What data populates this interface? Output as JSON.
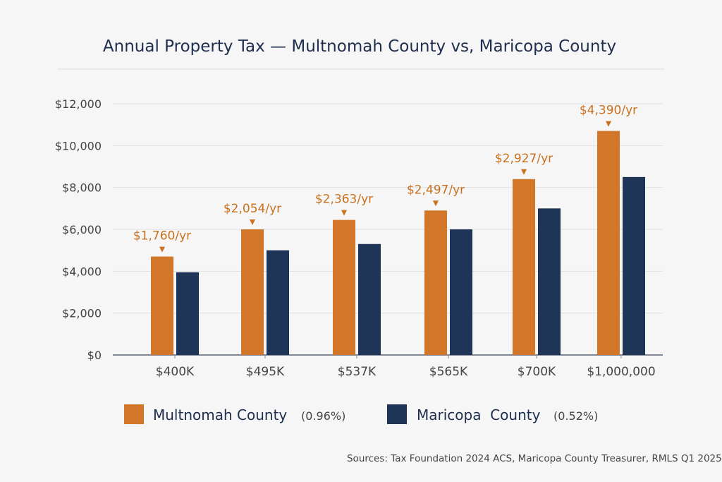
{
  "chart_data": {
    "type": "bar",
    "title": "Annual Property Tax — Multnomah County vs, Maricopa County",
    "categories": [
      "$400K",
      "$495K",
      "$537K",
      "$565K",
      "$700K",
      "$1,000,000"
    ],
    "series": [
      {
        "name": "Multnomah County",
        "note": "(0.96%)",
        "color": "#d2772a",
        "values": [
          4700,
          6000,
          6450,
          6900,
          8400,
          10700
        ]
      },
      {
        "name": "Maricopa  County",
        "note": "(0.52%)",
        "color": "#1e3557",
        "values": [
          3950,
          5000,
          5300,
          6000,
          7000,
          8500
        ]
      }
    ],
    "data_labels": [
      "$1,760/yr",
      "$2,054/yr",
      "$2,363/yr",
      "$2,497/yr",
      "$2,927/yr",
      "$4,390/yr"
    ],
    "ylim": [
      0,
      12000
    ],
    "yticks": [
      0,
      2000,
      4000,
      6000,
      8000,
      10000,
      12000
    ],
    "ytick_labels": [
      "$0",
      "$2,000",
      "$4,000",
      "$6,000",
      "$8,000",
      "$10,000",
      "$12,000"
    ],
    "xlabel": "",
    "ylabel": "",
    "grid": true,
    "legend_position": "bottom",
    "source": "Sources: Tax Foundation 2024 ACS, Maricopa County Treasurer, RMLS Q1 2025"
  }
}
